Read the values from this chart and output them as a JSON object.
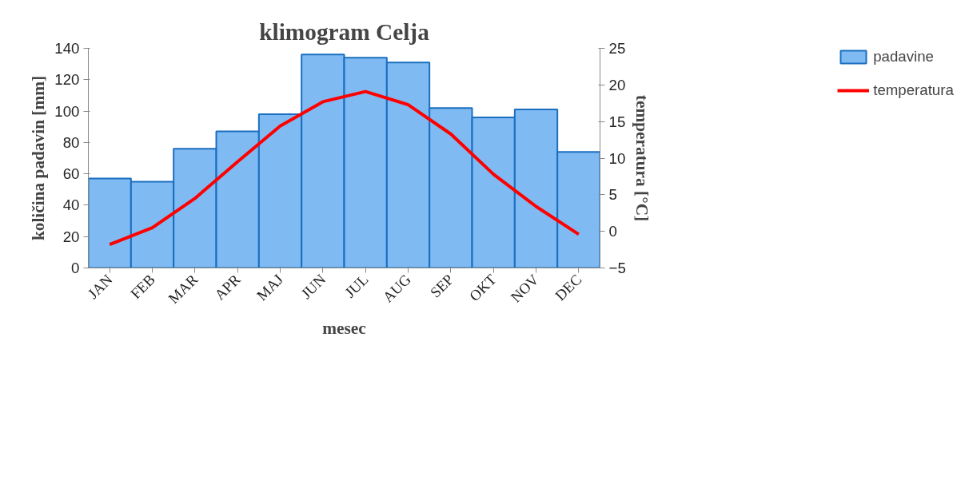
{
  "chart_data": {
    "type": "bar",
    "title": "klimogram Celja",
    "xlabel": "mesec",
    "ylabel": "količina padavin [mm]",
    "y2label": "temperatura [°C]",
    "categories": [
      "JAN",
      "FEB",
      "MAR",
      "APR",
      "MAJ",
      "JUN",
      "JUL",
      "AUG",
      "SEP",
      "OKT",
      "NOV",
      "DEC"
    ],
    "series": [
      {
        "name": "padavine",
        "color": "#6aaef0",
        "values": [
          57,
          55,
          76,
          87,
          98,
          136,
          134,
          131,
          102,
          96,
          101,
          74
        ]
      },
      {
        "name": "temperatura",
        "type": "line",
        "axis": "y2",
        "color": "#ff0000",
        "values": [
          -1.8,
          0.5,
          4.5,
          9.5,
          14.4,
          17.7,
          19.1,
          17.3,
          13.3,
          7.8,
          3.4,
          -0.4
        ]
      }
    ],
    "ylim": [
      0,
      140
    ],
    "yticks": [
      0,
      20,
      40,
      60,
      80,
      100,
      120,
      140
    ],
    "y2lim": [
      -5,
      25
    ],
    "y2ticks": [
      -5,
      0,
      5,
      10,
      15,
      20,
      25
    ],
    "grid": false,
    "legend": "right",
    "marker": "none"
  }
}
